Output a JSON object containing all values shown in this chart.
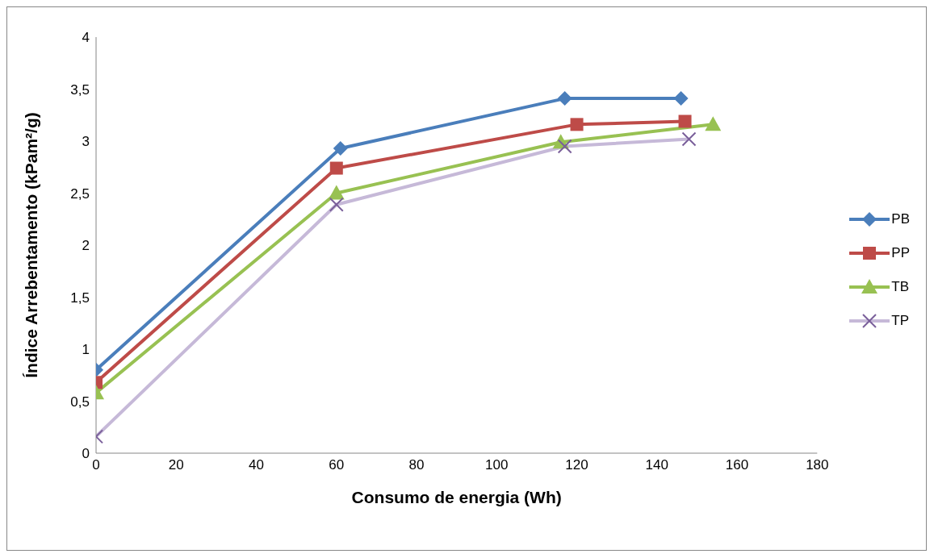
{
  "chart_data": {
    "type": "line",
    "xlabel": "Consumo de energia (Wh)",
    "ylabel": "Índice Arrebentamento (kPam²/g)",
    "xlim": [
      0,
      180
    ],
    "xticks": [
      0,
      20,
      40,
      60,
      80,
      100,
      120,
      140,
      160,
      180
    ],
    "ylim": [
      0,
      4
    ],
    "yticks": [
      0,
      {
        "value": 0.5,
        "label": "0,5"
      },
      1,
      {
        "value": 1.5,
        "label": "1,5"
      },
      2,
      {
        "value": 2.5,
        "label": "2,5"
      },
      3,
      {
        "value": 3.5,
        "label": "3,5"
      },
      4
    ],
    "grid": false,
    "legend": "right",
    "series": [
      {
        "name": "PB",
        "color": "#4a7ebb",
        "marker": "diamond",
        "x": [
          0,
          61,
          117,
          146
        ],
        "values": [
          0.8,
          2.93,
          3.41,
          3.41
        ]
      },
      {
        "name": "PP",
        "color": "#be4b48",
        "marker": "square",
        "x": [
          0,
          60,
          120,
          147
        ],
        "values": [
          0.68,
          2.74,
          3.16,
          3.19
        ]
      },
      {
        "name": "TB",
        "color": "#98c152",
        "marker": "triangle",
        "x": [
          0,
          60,
          116,
          154
        ],
        "values": [
          0.58,
          2.5,
          2.99,
          3.16
        ]
      },
      {
        "name": "TP",
        "color": "#c6b9d8",
        "marker": "cross",
        "x": [
          0,
          60,
          117,
          148
        ],
        "values": [
          0.16,
          2.39,
          2.95,
          3.02
        ]
      }
    ]
  }
}
